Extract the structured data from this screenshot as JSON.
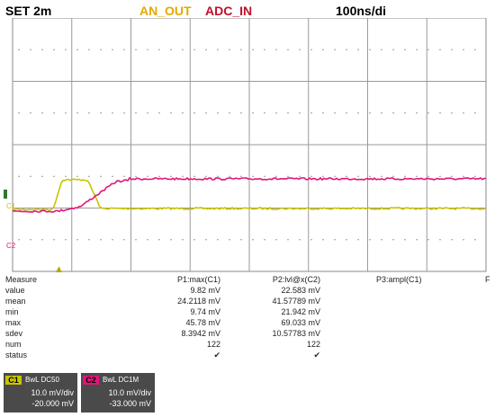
{
  "header": {
    "set_label": "SET 2m",
    "ch1_name": "AN_OUT",
    "ch2_name": "ADC_IN",
    "timebase": "100ns/di"
  },
  "markers": {
    "ch1": "C1",
    "ch2": "C2",
    "trigger": "▲"
  },
  "colors": {
    "ch1": "#c8c400",
    "ch1_text": "#e6a800",
    "ch2": "#e0157a",
    "ch2_text": "#c0102a"
  },
  "measure": {
    "title": "Measure",
    "col1": "P1:max(C1)",
    "col2": "P2:lvl@x(C2)",
    "col3": "P3:ampl(C1)",
    "col4": "F",
    "rows": [
      {
        "label": "value",
        "c1": "9.82 mV",
        "c2": "22.583 mV"
      },
      {
        "label": "mean",
        "c1": "24.2118 mV",
        "c2": "41.57789 mV"
      },
      {
        "label": "min",
        "c1": "9.74 mV",
        "c2": "21.942 mV"
      },
      {
        "label": "max",
        "c1": "45.78 mV",
        "c2": "69.033 mV"
      },
      {
        "label": "sdev",
        "c1": "8.3942 mV",
        "c2": "10.57783 mV"
      },
      {
        "label": "num",
        "c1": "122",
        "c2": "122"
      },
      {
        "label": "status",
        "c1": "✔",
        "c2": "✔"
      }
    ]
  },
  "channels": {
    "c1": {
      "tag": "C1",
      "coupling": "BwL DC50",
      "scale": "10.0 mV/div",
      "offset": "-20.000 mV"
    },
    "c2": {
      "tag": "C2",
      "coupling": "BwL DC1M",
      "scale": "10.0 mV/div",
      "offset": "-33.000 mV"
    }
  }
}
